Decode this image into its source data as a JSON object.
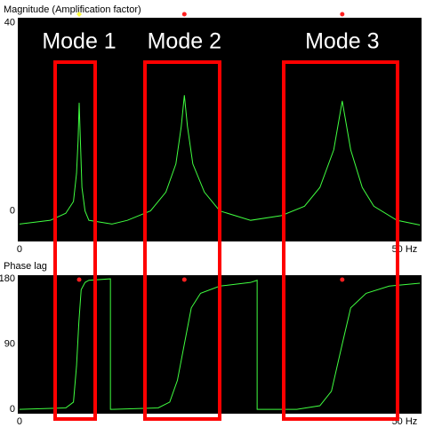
{
  "chart_data": [
    {
      "type": "line",
      "title": "Magnitude (Amplification factor)",
      "color": "#40ff40",
      "xlim": [
        -0.23,
        52.2
      ],
      "xticks": [
        0,
        {
          "value": 50,
          "label": "50 Hz"
        }
      ],
      "ylim": [
        -6.5,
        41.1
      ],
      "yticks": [
        40,
        0
      ],
      "x": [
        0,
        4,
        6,
        7,
        7.4,
        7.6,
        7.74,
        7.9,
        8.1,
        8.5,
        9,
        12,
        14,
        17,
        19,
        20.3,
        21,
        21.4,
        21.8,
        22.5,
        24,
        26,
        30,
        34,
        37,
        39,
        40.8,
        41.9,
        43,
        44.5,
        46,
        49,
        52
      ],
      "values": [
        -2.8,
        -2,
        -0.5,
        2,
        8,
        15,
        23,
        15,
        5,
        0,
        -2,
        -2.8,
        -2,
        0,
        4,
        10,
        18,
        24.6,
        18,
        10,
        4,
        0,
        -2,
        -1,
        1,
        5,
        13,
        23.4,
        13,
        5,
        1,
        -2,
        -3
      ],
      "markers": {
        "x": [
          7.74,
          21.4,
          41.9
        ],
        "colors": [
          "#ffff40",
          "#ff2020",
          "#ff2020"
        ]
      },
      "annotations": [
        "Mode 1",
        "Mode 2",
        "Mode 3"
      ]
    },
    {
      "type": "line",
      "title": "Phase lag",
      "color": "#40ff40",
      "xlim": [
        -0.23,
        52.2
      ],
      "xticks": [
        0,
        {
          "value": 50,
          "label": "50 Hz"
        }
      ],
      "ylim": [
        -6,
        185
      ],
      "yticks": [
        180,
        90,
        0
      ],
      "x": [
        0,
        6,
        7,
        7.4,
        7.7,
        8,
        8.5,
        9,
        11.8,
        11.8,
        12,
        18,
        19.5,
        20.5,
        21.4,
        22.3,
        23.5,
        26,
        30,
        30.85,
        30.85,
        36,
        39,
        40.5,
        41.9,
        43,
        45,
        48,
        52
      ],
      "values": [
        0,
        2,
        10,
        60,
        120,
        165,
        175,
        178,
        180,
        0,
        0,
        2,
        10,
        40,
        90,
        140,
        160,
        170,
        175,
        178,
        0,
        0,
        5,
        25,
        90,
        140,
        160,
        170,
        174
      ],
      "markers": {
        "x": [
          7.74,
          21.4,
          41.9
        ],
        "colors": [
          "#ff2020",
          "#ff2020",
          "#ff2020"
        ]
      }
    }
  ]
}
